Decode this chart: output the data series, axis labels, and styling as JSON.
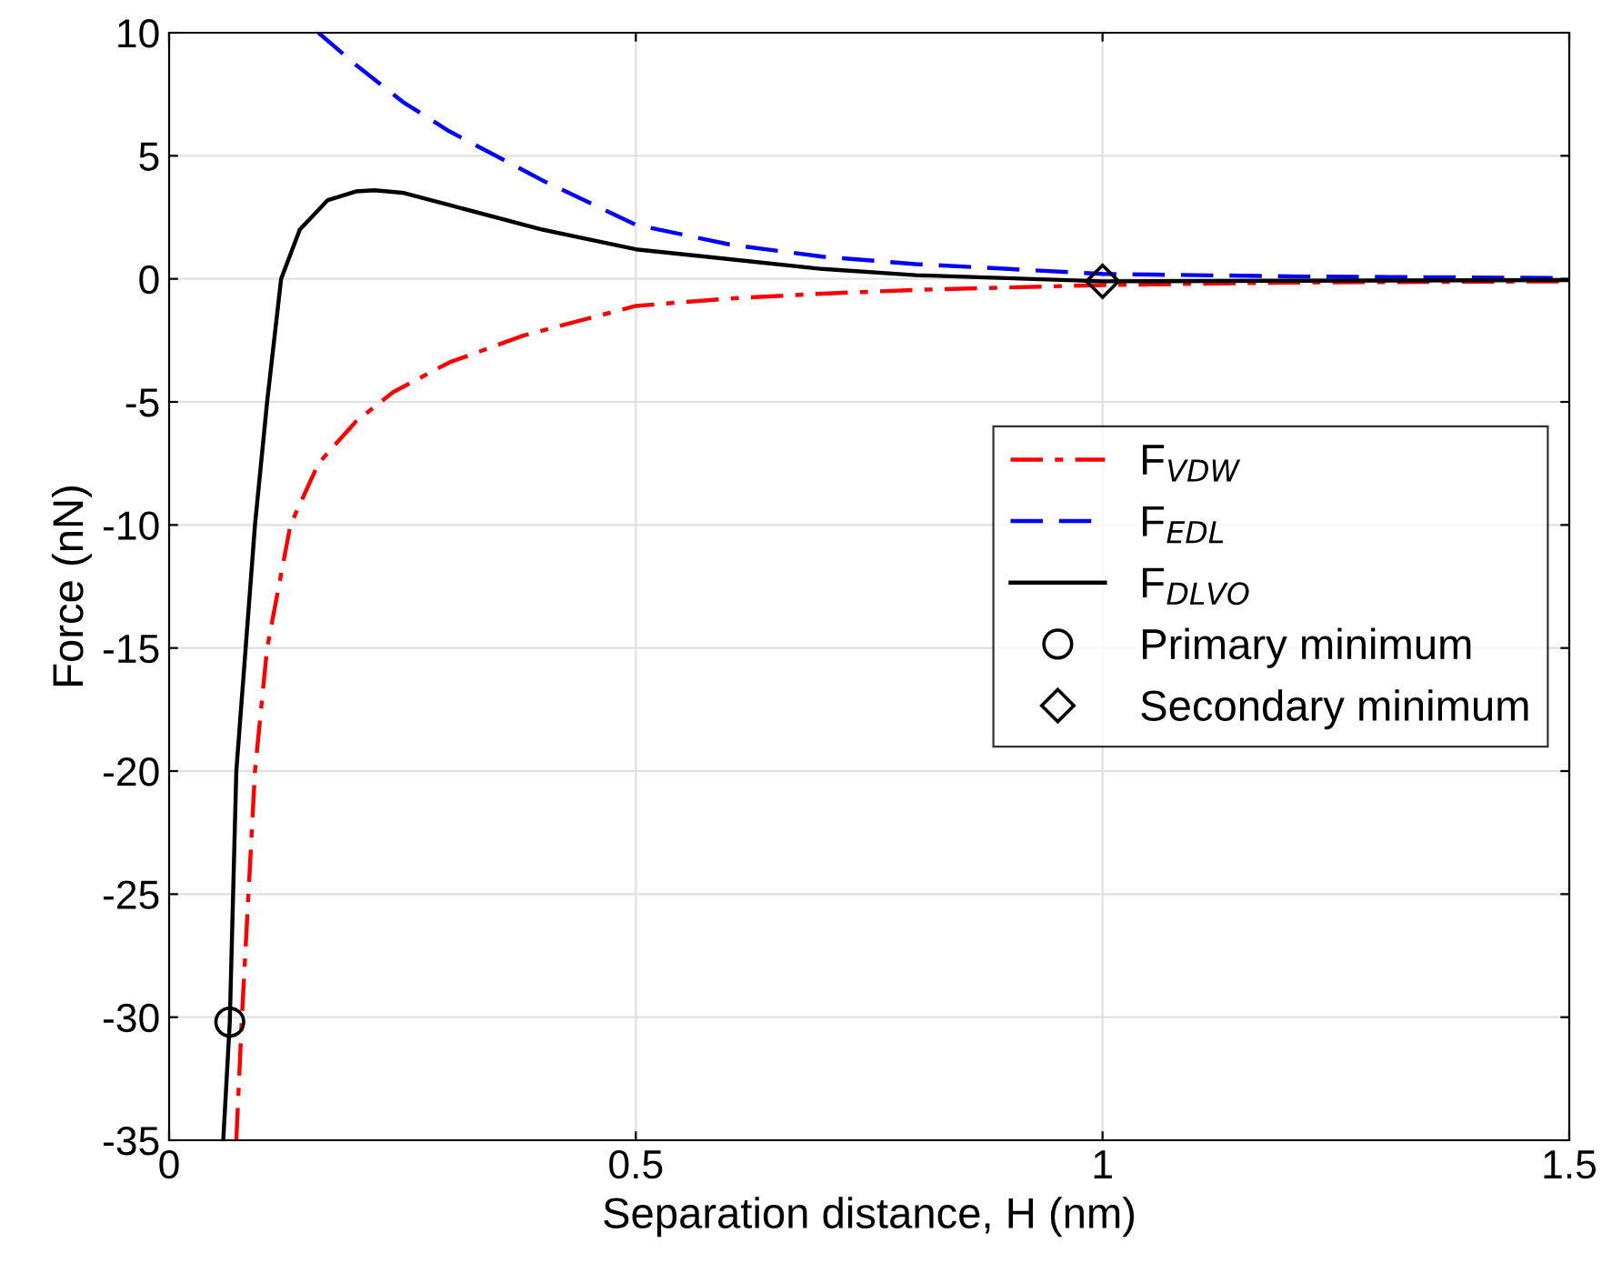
{
  "chart_data": {
    "type": "line",
    "xlabel": "Separation distance, H (nm)",
    "ylabel": "Force (nN)",
    "xlim": [
      0,
      1.5
    ],
    "ylim": [
      -35,
      10
    ],
    "xticks": [
      0,
      0.5,
      1,
      1.5
    ],
    "yticks": [
      -35,
      -30,
      -25,
      -20,
      -15,
      -10,
      -5,
      0,
      5,
      10
    ],
    "grid": true,
    "legend": "right",
    "series": [
      {
        "name": "F$_{VDW}$",
        "color": "#ff0000",
        "line_style": "dashdot",
        "marker": "none",
        "x": [
          0.072,
          0.078,
          0.085,
          0.092,
          0.105,
          0.13,
          0.16,
          0.2,
          0.24,
          0.3,
          0.38,
          0.5,
          0.6,
          0.7,
          0.8,
          1.0,
          1.2,
          1.5
        ],
        "values": [
          -35,
          -30,
          -25,
          -20,
          -15,
          -10,
          -7.5,
          -5.8,
          -4.6,
          -3.4,
          -2.3,
          -1.1,
          -0.8,
          -0.6,
          -0.45,
          -0.25,
          -0.15,
          -0.1
        ]
      },
      {
        "name": "F$_{EDL}$",
        "color": "#0000ff",
        "line_style": "dashed",
        "marker": "none",
        "x": [
          0.16,
          0.2,
          0.25,
          0.3,
          0.35,
          0.4,
          0.5,
          0.6,
          0.7,
          0.8,
          0.9,
          1.0,
          1.2,
          1.5
        ],
        "values": [
          10,
          8.7,
          7.2,
          6.0,
          5.0,
          4.0,
          2.2,
          1.4,
          0.9,
          0.6,
          0.4,
          0.2,
          0.1,
          0.03
        ]
      },
      {
        "name": "F$_{DLVO}$",
        "color": "#000000",
        "line_style": "solid",
        "marker": "none",
        "x": [
          0.058,
          0.065,
          0.072,
          0.082,
          0.092,
          0.105,
          0.12,
          0.14,
          0.17,
          0.2,
          0.22,
          0.25,
          0.3,
          0.4,
          0.5,
          0.6,
          0.7,
          0.8,
          1.0,
          1.2,
          1.5
        ],
        "values": [
          -35,
          -30.2,
          -20,
          -15,
          -10,
          -5,
          0,
          2.0,
          3.2,
          3.55,
          3.6,
          3.5,
          3.0,
          2.0,
          1.2,
          0.8,
          0.4,
          0.15,
          -0.1,
          -0.08,
          -0.05
        ]
      },
      {
        "name": "Primary minimum",
        "type": "scatter",
        "color": "#000000",
        "marker": "circle",
        "x": [
          0.065
        ],
        "values": [
          -30.2
        ]
      },
      {
        "name": "Secondary minimum",
        "type": "scatter",
        "color": "#000000",
        "marker": "diamond",
        "x": [
          1.0
        ],
        "values": [
          -0.1
        ]
      }
    ]
  }
}
